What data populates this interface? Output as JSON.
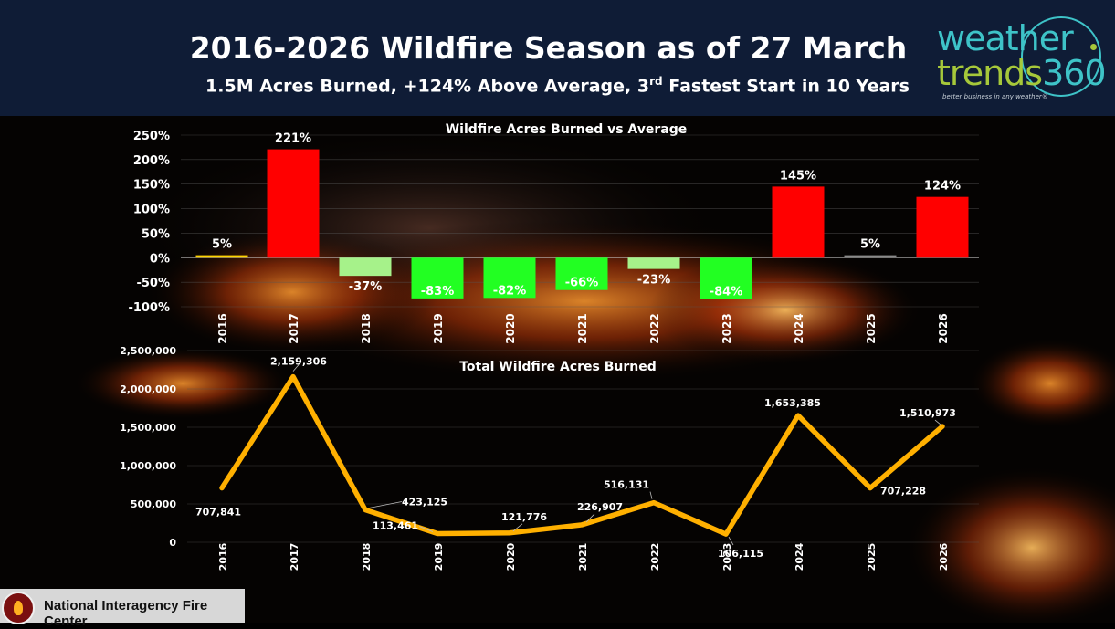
{
  "header": {
    "title": "2016-2026 Wildfire Season as of 27 March",
    "subtitle_main": "1.5M Acres Burned, +124% Above Average, 3",
    "subtitle_sup": "rd",
    "subtitle_end": " Fastest Start in 10 Years"
  },
  "logo": {
    "line1": "weather",
    "line2": "trends",
    "line2_num": "360",
    "tagline": "better business in any weather®"
  },
  "footer": {
    "label": "National Interagency Fire Center"
  },
  "chart_data": [
    {
      "type": "bar",
      "title": "Wildfire Acres Burned vs Average",
      "categories": [
        "2016",
        "2017",
        "2018",
        "2019",
        "2020",
        "2021",
        "2022",
        "2023",
        "2024",
        "2025",
        "2026"
      ],
      "values": [
        5,
        221,
        -37,
        -83,
        -82,
        -66,
        -23,
        -84,
        145,
        5,
        124
      ],
      "data_labels": [
        "5%",
        "221%",
        "-37%",
        "-83%",
        "-82%",
        "-66%",
        "-23%",
        "-84%",
        "145%",
        "5%",
        "124%"
      ],
      "bar_colors": [
        "#ffd400",
        "#ff0000",
        "#a6f28a",
        "#22ff22",
        "#22ff22",
        "#22ff22",
        "#a6f28a",
        "#22ff22",
        "#ff0000",
        "#8a8a8a",
        "#ff0000"
      ],
      "yticks": [
        "250%",
        "200%",
        "150%",
        "100%",
        "50%",
        "0%",
        "-50%",
        "-100%"
      ],
      "ylim": [
        -100,
        250
      ],
      "grid": true
    },
    {
      "type": "line",
      "title": "Total Wildfire Acres Burned",
      "categories": [
        "2016",
        "2017",
        "2018",
        "2019",
        "2020",
        "2021",
        "2022",
        "2023",
        "2024",
        "2025",
        "2026"
      ],
      "values": [
        707841,
        2159306,
        423125,
        113461,
        121776,
        226907,
        516131,
        106115,
        1653385,
        707228,
        1510973
      ],
      "data_labels": [
        "707,841",
        "2,159,306",
        "423,125",
        "113,461",
        "121,776",
        "226,907",
        "516,131",
        "106,115",
        "1,653,385",
        "707,228",
        "1,510,973"
      ],
      "yticks": [
        "2,500,000",
        "2,000,000",
        "1,500,000",
        "1,000,000",
        "500,000",
        "0"
      ],
      "ylim": [
        0,
        2500000
      ],
      "line_color": "#ffb000",
      "grid": true
    }
  ]
}
